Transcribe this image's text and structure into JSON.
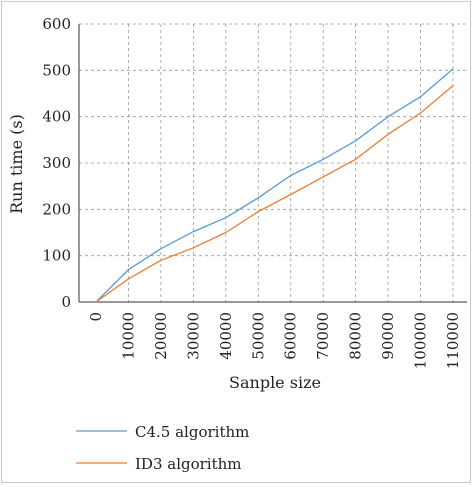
{
  "chart_data": {
    "type": "line",
    "xlabel": "Sanple size",
    "ylabel": "Run time (s)",
    "x": [
      0,
      10000,
      20000,
      30000,
      40000,
      50000,
      60000,
      70000,
      80000,
      90000,
      100000,
      110000
    ],
    "x_tick_labels": [
      "0",
      "10000",
      "20000",
      "30000",
      "40000",
      "50000",
      "60000",
      "70000",
      "80000",
      "90000",
      "100000",
      "110000"
    ],
    "ylim": [
      0,
      600
    ],
    "y_ticks": [
      0,
      100,
      200,
      300,
      400,
      500,
      600
    ],
    "y_tick_labels": [
      "0",
      "100",
      "200",
      "300",
      "400",
      "500",
      "600"
    ],
    "grid": true,
    "legend_position": "bottom",
    "series": [
      {
        "name": "C4.5 algorithm",
        "color": "#5b9bd5",
        "values": [
          0,
          70,
          115,
          152,
          182,
          225,
          273,
          308,
          348,
          400,
          443,
          503
        ]
      },
      {
        "name": "ID3 algorithm",
        "color": "#ed7d31",
        "values": [
          0,
          50,
          90,
          117,
          150,
          195,
          232,
          270,
          308,
          362,
          408,
          467
        ]
      }
    ]
  }
}
